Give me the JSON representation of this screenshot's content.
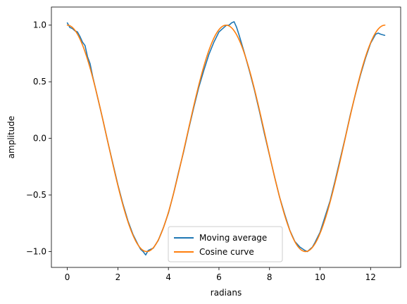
{
  "chart_data": {
    "type": "line",
    "xlabel": "radians",
    "ylabel": "amplitude",
    "xlim": [
      -0.63,
      13.19
    ],
    "ylim": [
      -1.14,
      1.16
    ],
    "x_ticks": [
      {
        "value": 0,
        "label": "0"
      },
      {
        "value": 2,
        "label": "2"
      },
      {
        "value": 4,
        "label": "4"
      },
      {
        "value": 6,
        "label": "6"
      },
      {
        "value": 8,
        "label": "8"
      },
      {
        "value": 10,
        "label": "10"
      },
      {
        "value": 12,
        "label": "12"
      }
    ],
    "y_ticks": [
      {
        "value": -1.0,
        "label": "−1.0"
      },
      {
        "value": -0.5,
        "label": "−0.5"
      },
      {
        "value": 0.0,
        "label": "0.0"
      },
      {
        "value": 0.5,
        "label": "0.5"
      },
      {
        "value": 1.0,
        "label": "1.0"
      }
    ],
    "grid": false,
    "legend_position": "lower center",
    "series": [
      {
        "name": "Moving average",
        "color": "#1f77b4",
        "x": [
          0,
          0.1,
          0.2,
          0.3,
          0.4,
          0.5,
          0.6,
          0.7,
          0.8,
          0.9,
          1.0,
          1.2,
          1.4,
          1.6,
          1.8,
          2.0,
          2.2,
          2.4,
          2.6,
          2.8,
          2.9,
          3.0,
          3.1,
          3.2,
          3.3,
          3.4,
          3.6,
          3.8,
          4.0,
          4.2,
          4.4,
          4.6,
          4.8,
          5.0,
          5.2,
          5.4,
          5.6,
          5.8,
          6.0,
          6.2,
          6.3,
          6.4,
          6.5,
          6.6,
          6.7,
          6.8,
          7.0,
          7.2,
          7.4,
          7.6,
          7.8,
          8.0,
          8.2,
          8.4,
          8.6,
          8.8,
          9.0,
          9.2,
          9.4,
          9.5,
          9.6,
          9.7,
          9.8,
          10.0,
          10.2,
          10.4,
          10.6,
          10.8,
          11.0,
          11.2,
          11.4,
          11.6,
          11.8,
          12.0,
          12.2,
          12.3,
          12.4,
          12.56
        ],
        "y": [
          1.02,
          0.98,
          0.97,
          0.95,
          0.94,
          0.9,
          0.85,
          0.82,
          0.72,
          0.66,
          0.55,
          0.36,
          0.17,
          -0.03,
          -0.22,
          -0.41,
          -0.58,
          -0.73,
          -0.85,
          -0.94,
          -0.98,
          -1.0,
          -1.03,
          -0.99,
          -0.98,
          -0.97,
          -0.9,
          -0.79,
          -0.66,
          -0.49,
          -0.3,
          -0.12,
          0.08,
          0.27,
          0.45,
          0.6,
          0.74,
          0.85,
          0.94,
          0.98,
          1.0,
          1.0,
          1.02,
          1.03,
          0.98,
          0.91,
          0.76,
          0.6,
          0.43,
          0.24,
          0.04,
          -0.15,
          -0.34,
          -0.52,
          -0.67,
          -0.81,
          -0.91,
          -0.96,
          -0.99,
          -1.0,
          -0.98,
          -0.96,
          -0.92,
          -0.83,
          -0.69,
          -0.55,
          -0.37,
          -0.18,
          0.01,
          0.21,
          0.39,
          0.56,
          0.71,
          0.84,
          0.92,
          0.93,
          0.92,
          0.91
        ]
      },
      {
        "name": "Cosine curve",
        "color": "#ff7f0e",
        "function": "cos",
        "x_range": [
          0,
          12.566
        ]
      }
    ]
  }
}
